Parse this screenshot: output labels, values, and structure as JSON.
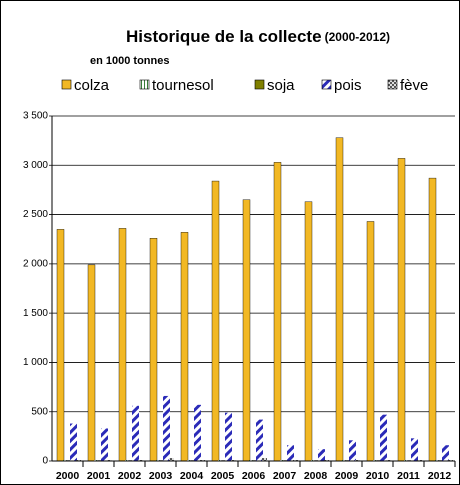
{
  "chart_data": {
    "type": "bar",
    "title": "Historique de la collecte",
    "title_note": "(2000-2012)",
    "subtitle": "en 1000 tonnes",
    "categories": [
      "2000",
      "2001",
      "2002",
      "2003",
      "2004",
      "2005",
      "2006",
      "2007",
      "2008",
      "2009",
      "2010",
      "2011",
      "2012"
    ],
    "series": [
      {
        "name": "colza",
        "color": "#f2b824",
        "fill": "solid",
        "values": [
          2350,
          1990,
          2360,
          2260,
          2320,
          2840,
          2650,
          3030,
          2630,
          3280,
          2430,
          3070,
          2870
        ]
      },
      {
        "name": "tournesol",
        "color": "#3a7d3a",
        "fill": "vstripes",
        "values": [
          10,
          10,
          10,
          10,
          10,
          10,
          10,
          10,
          10,
          10,
          10,
          10,
          10
        ]
      },
      {
        "name": "soja",
        "color": "#808000",
        "fill": "solid",
        "values": [
          5,
          5,
          5,
          5,
          5,
          5,
          5,
          5,
          5,
          5,
          5,
          5,
          5
        ]
      },
      {
        "name": "pois",
        "color": "#2b2bb8",
        "fill": "diagonal",
        "values": [
          380,
          330,
          560,
          660,
          570,
          490,
          420,
          160,
          120,
          210,
          470,
          230,
          160
        ]
      },
      {
        "name": "fève",
        "color": "#555555",
        "fill": "checker",
        "values": [
          10,
          10,
          10,
          30,
          10,
          10,
          30,
          10,
          10,
          10,
          10,
          10,
          10
        ]
      }
    ],
    "ylim": [
      0,
      3500
    ],
    "yticks": [
      0,
      500,
      {
        "value": 1000,
        "label": "1 000"
      },
      {
        "value": 1500,
        "label": "1 500"
      },
      {
        "value": 2000,
        "label": "2 000"
      },
      {
        "value": 2500,
        "label": "2 500"
      },
      {
        "value": 3000,
        "label": "3 000"
      },
      {
        "value": 3500,
        "label": "3 500"
      }
    ],
    "grid": true
  }
}
